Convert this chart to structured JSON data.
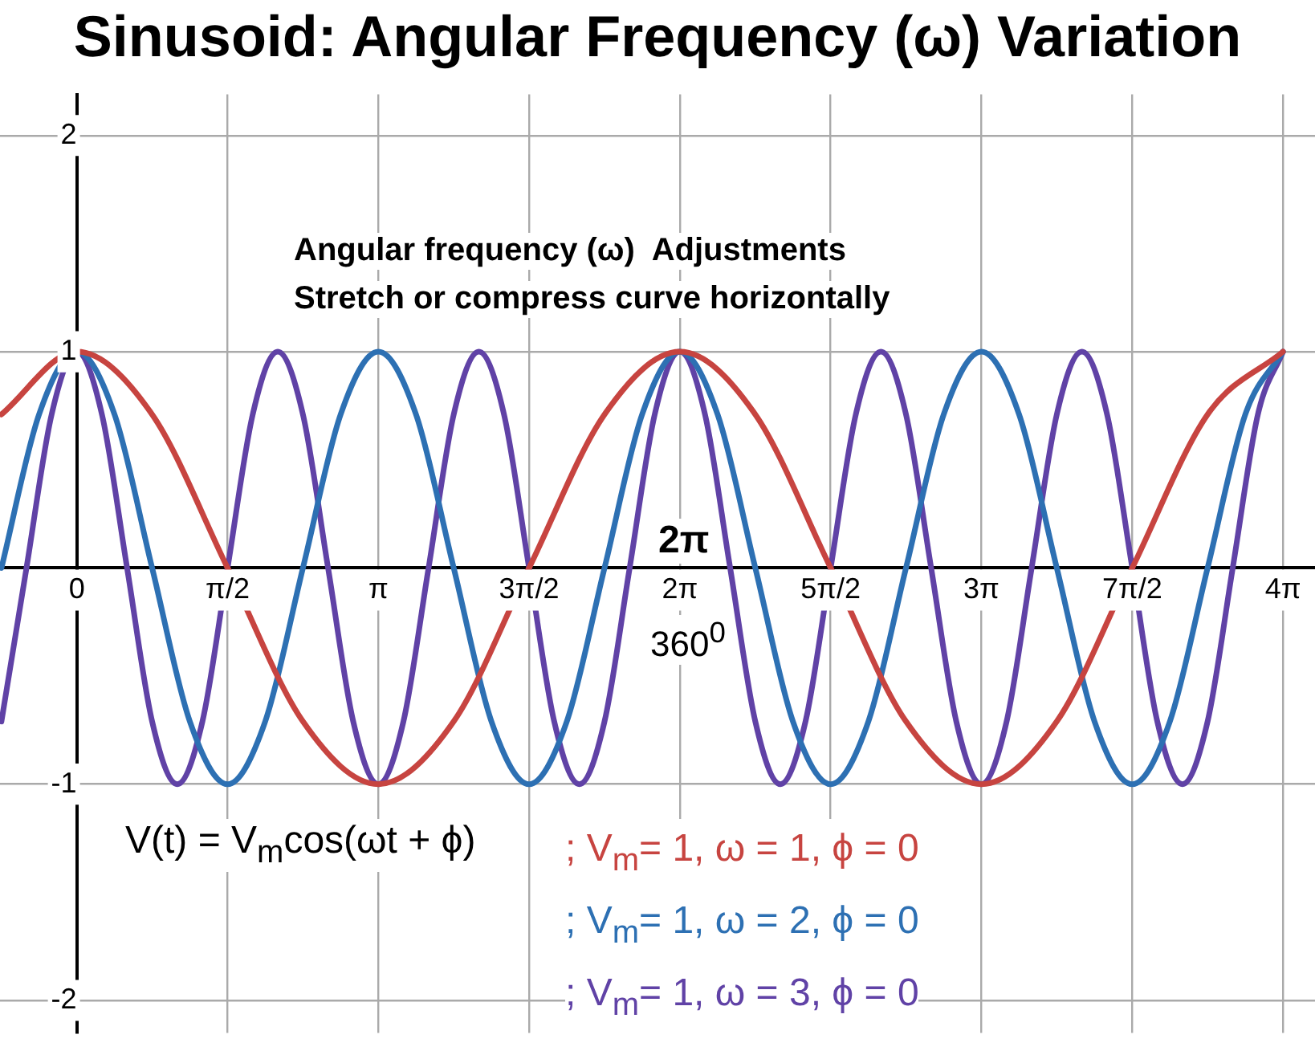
{
  "chart_data": {
    "type": "line",
    "title": "Sinusoid: Angular Frequency (ω) Variation",
    "xlim": [
      -0.8,
      12.9
    ],
    "ylim": [
      -2.15,
      2.19
    ],
    "xticks": [
      0,
      {
        "value": 1.571,
        "label": "π/2"
      },
      {
        "value": 3.142,
        "label": "π"
      },
      {
        "value": 4.712,
        "label": "3π/2"
      },
      {
        "value": 6.283,
        "label": "2π"
      },
      {
        "value": 7.854,
        "label": "5π/2"
      },
      {
        "value": 9.425,
        "label": "3π"
      },
      {
        "value": 10.996,
        "label": "7π/2"
      },
      {
        "value": 12.566,
        "label": "4π"
      }
    ],
    "yticks": [
      -2,
      -1,
      {
        "value": 0,
        "label": null
      },
      1,
      2
    ],
    "grid": true,
    "legend": "bottom",
    "marker": "none",
    "line_style": "solid",
    "annotations": [
      "Angular frequency (ω)  Adjustments",
      "Stretch or compress curve horizontally",
      "V(t) = V$_{m}$cos(ωt + ϕ)",
      "2π",
      "360$^{0}$"
    ],
    "series": [
      {
        "name": "; V$_{m}$= 1, ω = 1, ϕ = 0",
        "color": "#c74440",
        "x": [
          -0.785,
          0,
          0.785,
          1.571,
          2.356,
          3.142,
          3.927,
          4.712,
          5.498,
          6.283,
          7.069,
          7.854,
          8.639,
          9.425,
          10.21,
          10.996,
          11.781,
          12.566
        ],
        "values": [
          0.71,
          1,
          0.71,
          0,
          -0.71,
          -1,
          -0.71,
          0,
          0.71,
          1,
          0.71,
          0,
          -0.71,
          -1,
          -0.71,
          0,
          0.71,
          1
        ]
      },
      {
        "name": "; V$_{m}$= 1, ω = 2, ϕ = 0",
        "color": "#2d70b3",
        "x": [
          -0.785,
          -0.393,
          0,
          0.393,
          0.785,
          1.178,
          1.571,
          1.963,
          2.356,
          2.749,
          3.142,
          3.534,
          3.927,
          4.32,
          4.712,
          5.105,
          5.498,
          5.89,
          6.283,
          6.676,
          7.069,
          7.461,
          7.854,
          8.247,
          8.639,
          9.032,
          9.425,
          9.817,
          10.21,
          10.603,
          10.996,
          11.388,
          11.781,
          12.174,
          12.566
        ],
        "values": [
          0,
          0.71,
          1,
          0.71,
          0,
          -0.71,
          -1,
          -0.71,
          0,
          0.71,
          1,
          0.71,
          0,
          -0.71,
          -1,
          -0.71,
          0,
          0.71,
          1,
          0.71,
          0,
          -0.71,
          -1,
          -0.71,
          0,
          0.71,
          1,
          0.71,
          0,
          -0.71,
          -1,
          -0.71,
          0,
          0.71,
          1
        ]
      },
      {
        "name": "; V$_{m}$= 1, ω = 3, ϕ = 0",
        "color": "#6042a6",
        "x": [
          -0.785,
          -0.524,
          -0.262,
          0,
          0.262,
          0.524,
          0.785,
          1.047,
          1.309,
          1.571,
          1.833,
          2.094,
          2.356,
          2.618,
          2.88,
          3.142,
          3.403,
          3.665,
          3.927,
          4.189,
          4.451,
          4.712,
          4.974,
          5.236,
          5.498,
          5.76,
          6.021,
          6.283,
          6.545,
          6.807,
          7.069,
          7.33,
          7.592,
          7.854,
          8.116,
          8.378,
          8.639,
          8.901,
          9.163,
          9.425,
          9.687,
          9.948,
          10.21,
          10.472,
          10.734,
          10.996,
          11.257,
          11.519,
          11.781,
          12.043,
          12.305,
          12.566
        ],
        "values": [
          -0.71,
          0,
          0.71,
          1,
          0.71,
          0,
          -0.71,
          -1,
          -0.71,
          0,
          0.71,
          1,
          0.71,
          0,
          -0.71,
          -1,
          -0.71,
          0,
          0.71,
          1,
          0.71,
          0,
          -0.71,
          -1,
          -0.71,
          0,
          0.71,
          1,
          0.71,
          0,
          -0.71,
          -1,
          -0.71,
          0,
          0.71,
          1,
          0.71,
          0,
          -0.71,
          -1,
          -0.71,
          0,
          0.71,
          1,
          0.71,
          0,
          -0.71,
          -1,
          -0.71,
          0,
          0.71,
          1
        ]
      }
    ]
  }
}
